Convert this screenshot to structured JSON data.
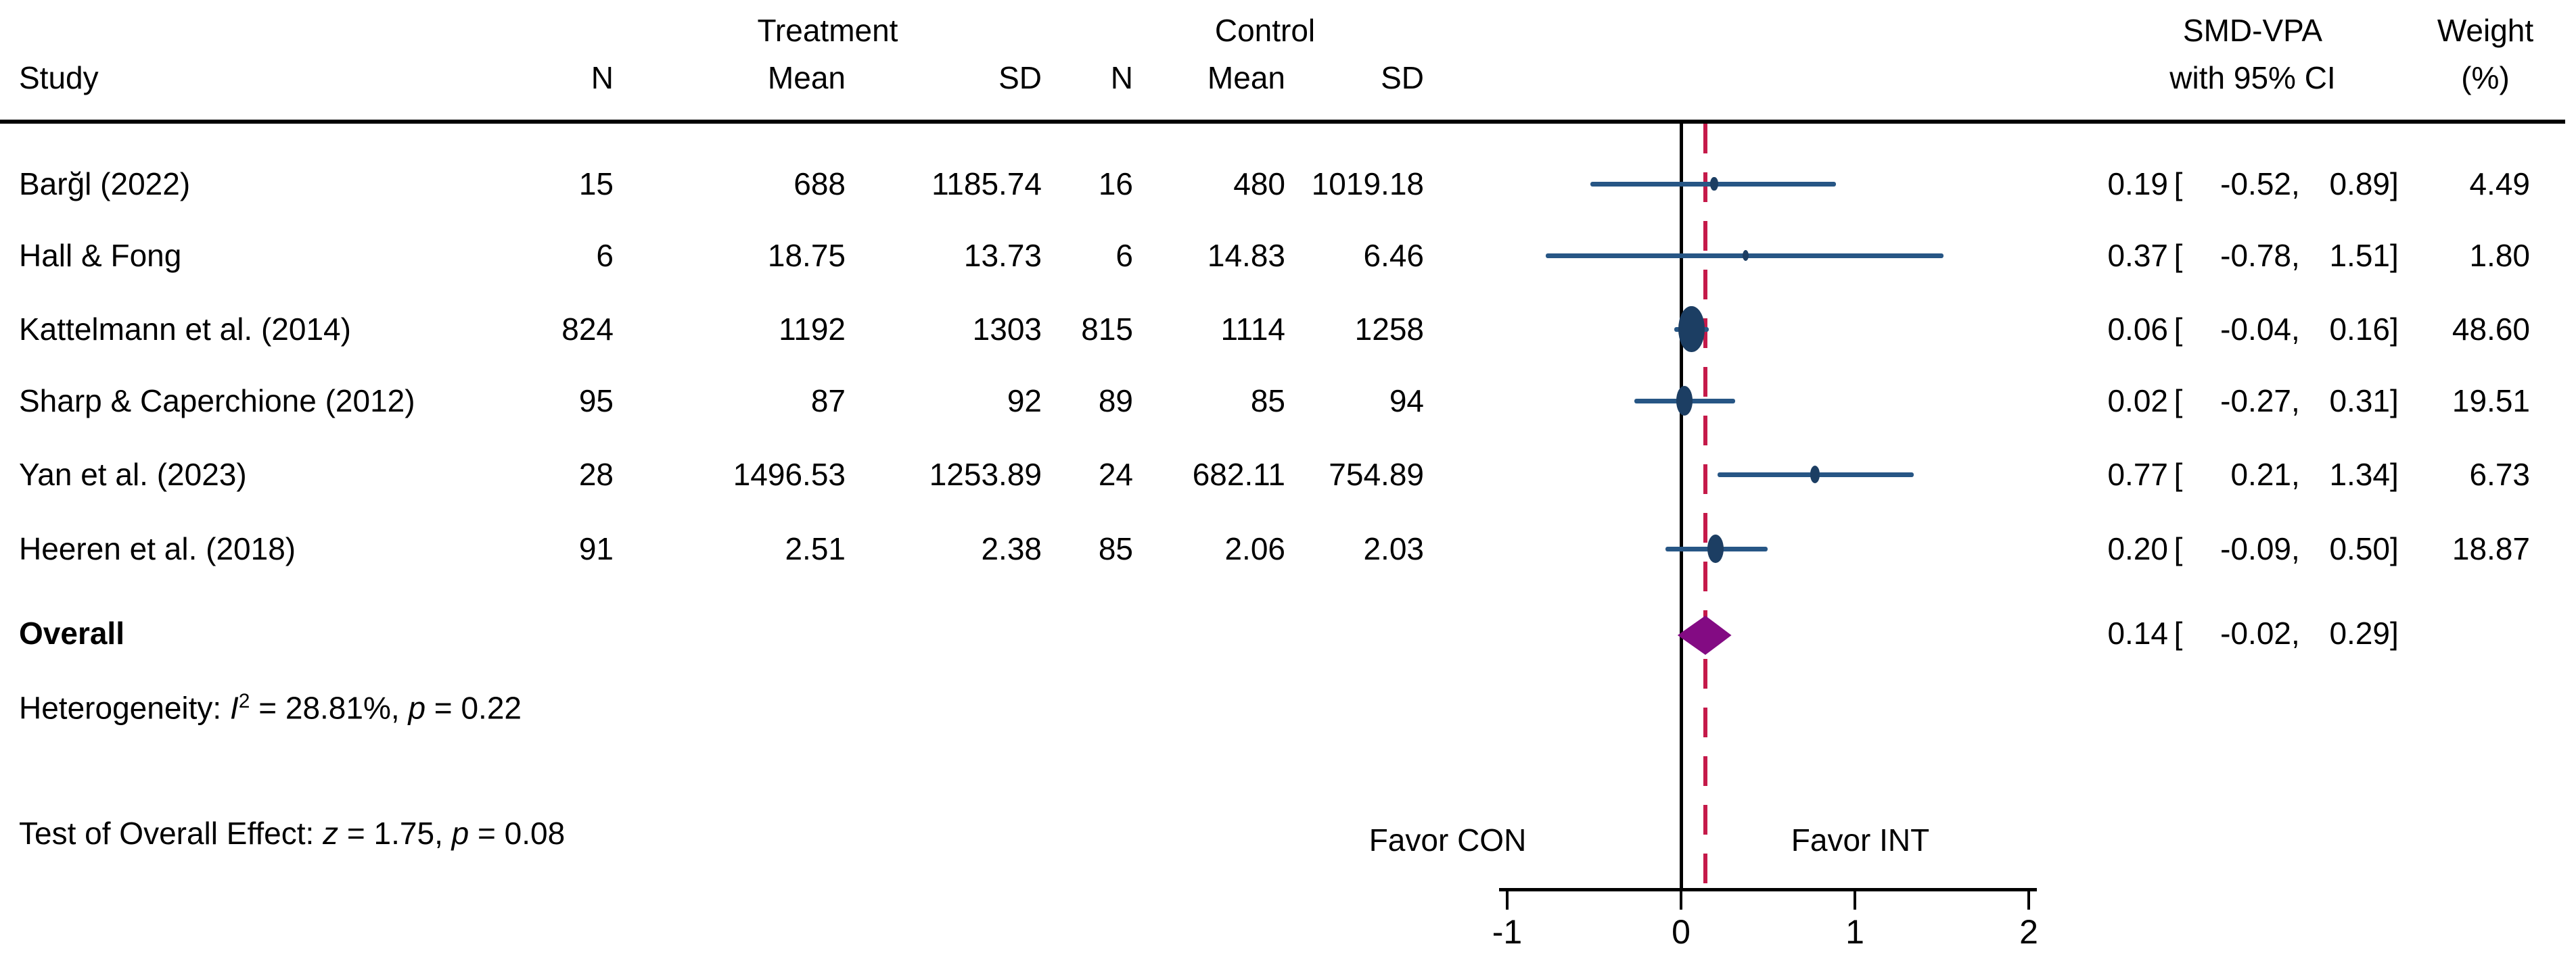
{
  "header": {
    "group_treatment": "Treatment",
    "group_control": "Control",
    "study": "Study",
    "n": "N",
    "mean": "Mean",
    "sd": "SD",
    "effect_line1": "SMD-VPA",
    "effect_line2": "with 95% CI",
    "weight_line1": "Weight",
    "weight_line2": "(%)"
  },
  "fmt": {
    "open": "[",
    "comma": ",",
    "close": "]"
  },
  "rows": [
    {
      "study": "Barğl (2022)",
      "t_n": "15",
      "t_mean": "688",
      "t_sd": "1185.74",
      "c_n": "16",
      "c_mean": "480",
      "c_sd": "1019.18",
      "est": "0.19",
      "low": "-0.52",
      "high": "0.89",
      "weight": "4.49"
    },
    {
      "study": "Hall & Fong",
      "t_n": "6",
      "t_mean": "18.75",
      "t_sd": "13.73",
      "c_n": "6",
      "c_mean": "14.83",
      "c_sd": "6.46",
      "est": "0.37",
      "low": "-0.78",
      "high": "1.51",
      "weight": "1.80"
    },
    {
      "study": "Kattelmann et al. (2014)",
      "t_n": "824",
      "t_mean": "1192",
      "t_sd": "1303",
      "c_n": "815",
      "c_mean": "1114",
      "c_sd": "1258",
      "est": "0.06",
      "low": "-0.04",
      "high": "0.16",
      "weight": "48.60"
    },
    {
      "study": "Sharp & Caperchione (2012)",
      "t_n": "95",
      "t_mean": "87",
      "t_sd": "92",
      "c_n": "89",
      "c_mean": "85",
      "c_sd": "94",
      "est": "0.02",
      "low": "-0.27",
      "high": "0.31",
      "weight": "19.51"
    },
    {
      "study": "Yan et al. (2023)",
      "t_n": "28",
      "t_mean": "1496.53",
      "t_sd": "1253.89",
      "c_n": "24",
      "c_mean": "682.11",
      "c_sd": "754.89",
      "est": "0.77",
      "low": "0.21",
      "high": "1.34",
      "weight": "6.73"
    },
    {
      "study": "Heeren et al. (2018)",
      "t_n": "91",
      "t_mean": "2.51",
      "t_sd": "2.38",
      "c_n": "85",
      "c_mean": "2.06",
      "c_sd": "2.03",
      "est": "0.20",
      "low": "-0.09",
      "high": "0.50",
      "weight": "18.87"
    }
  ],
  "overall": {
    "label": "Overall",
    "est": "0.14",
    "low": "-0.02",
    "high": "0.29"
  },
  "stats": {
    "het_label": "Heterogeneity: ",
    "het_i": "I",
    "het_sup": "2",
    "het_val": " = 28.81%, ",
    "het_p": "p",
    "het_pval": " = 0.22",
    "test_label": "Test of Overall Effect: ",
    "test_z": "z",
    "test_zval": " = 1.75, ",
    "test_p": "p",
    "test_pval": " = 0.08"
  },
  "axis": {
    "favor_left": "Favor CON",
    "favor_right": "Favor INT"
  },
  "chart_data": {
    "type": "scatter",
    "subtype": "forest-plot",
    "studies": [
      "Barğl (2022)",
      "Hall & Fong",
      "Kattelmann et al. (2014)",
      "Sharp & Caperchione (2012)",
      "Yan et al. (2023)",
      "Heeren et al. (2018)"
    ],
    "effects": [
      0.19,
      0.37,
      0.06,
      0.02,
      0.77,
      0.2
    ],
    "ci_low": [
      -0.52,
      -0.78,
      -0.04,
      -0.27,
      0.21,
      -0.09
    ],
    "ci_high": [
      0.89,
      1.51,
      0.16,
      0.31,
      1.34,
      0.5
    ],
    "weights_pct": [
      4.49,
      1.8,
      48.6,
      19.51,
      6.73,
      18.87
    ],
    "treatment": {
      "n": [
        15,
        6,
        824,
        95,
        28,
        91
      ],
      "mean": [
        688,
        18.75,
        1192,
        87,
        1496.53,
        2.51
      ],
      "sd": [
        1185.74,
        13.73,
        1303,
        92,
        1253.89,
        2.38
      ]
    },
    "control": {
      "n": [
        16,
        6,
        815,
        89,
        24,
        85
      ],
      "mean": [
        480,
        14.83,
        1114,
        85,
        682.11,
        2.06
      ],
      "sd": [
        1019.18,
        6.46,
        1258,
        94,
        754.89,
        2.03
      ]
    },
    "overall": {
      "effect": 0.14,
      "ci_low": -0.02,
      "ci_high": 0.29
    },
    "heterogeneity": {
      "I2_pct": 28.81,
      "p": 0.22
    },
    "overall_test": {
      "z": 1.75,
      "p": 0.08
    },
    "effect_label": "SMD-VPA with 95% CI",
    "xlim": [
      -1,
      2
    ],
    "x_ticks": [
      -1,
      0,
      1,
      2
    ],
    "ref_line": 0,
    "overall_line": 0.14,
    "favor_left": "Favor CON",
    "favor_right": "Favor INT",
    "grid": false,
    "marker_color": "#1c3e63",
    "ci_color": "#275685",
    "diamond_color": "#830b83",
    "ref_color": "#000000",
    "overall_line_color": "#c51a4a"
  }
}
